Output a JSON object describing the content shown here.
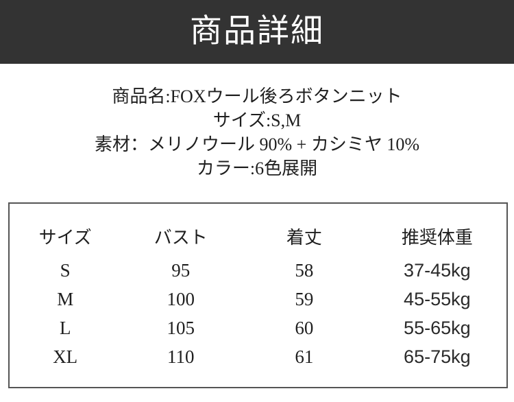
{
  "header": {
    "title": "商品詳細",
    "bg_color": "#333333",
    "text_color": "#ffffff"
  },
  "info": {
    "lines": [
      "商品名:FOXウール後ろボタンニット",
      "サイズ:S,M",
      "素材：メリノウール 90% + カシミヤ 10%",
      "カラー:6色展開"
    ]
  },
  "size_table": {
    "border_color": "#555555",
    "headers": [
      "サイズ",
      "バスト",
      "着丈",
      "推奨体重"
    ],
    "rows": [
      [
        "S",
        "95",
        "58",
        "37-45kg"
      ],
      [
        "M",
        "100",
        "59",
        "45-55kg"
      ],
      [
        "L",
        "105",
        "60",
        "55-65kg"
      ],
      [
        "XL",
        "110",
        "61",
        "65-75kg"
      ]
    ]
  }
}
